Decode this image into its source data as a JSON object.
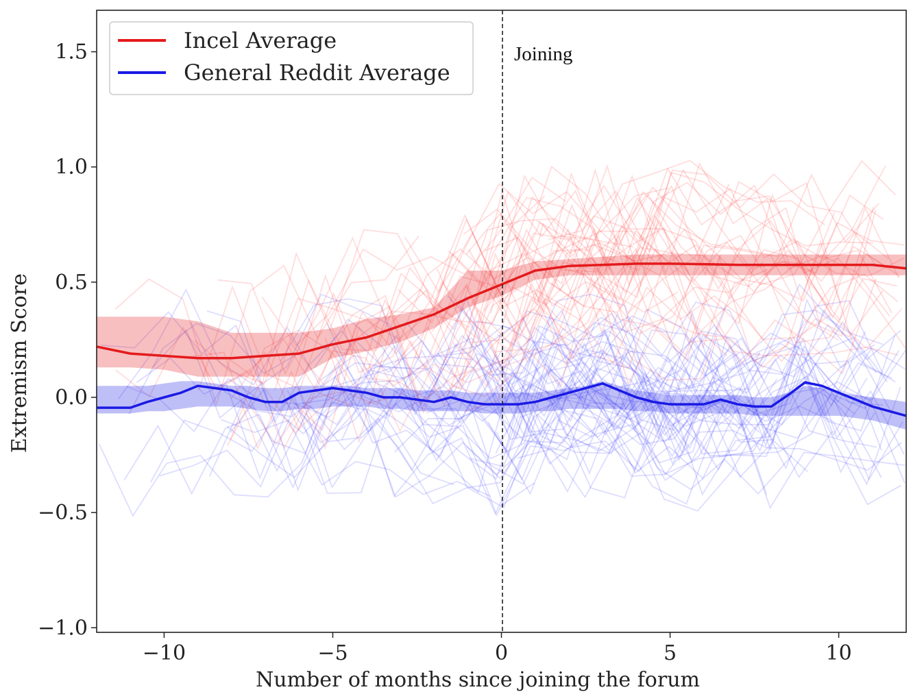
{
  "chart_data": {
    "type": "line",
    "title": "",
    "xlabel": "Number of months since joining the forum",
    "ylabel": "Extremism Score",
    "xlim": [
      -12,
      12
    ],
    "ylim": [
      -1.02,
      1.68
    ],
    "xticks": [
      -10,
      -5,
      0,
      5,
      10
    ],
    "yticks": [
      -1.0,
      -0.5,
      0.0,
      0.5,
      1.0,
      1.5
    ],
    "xtick_labels": [
      "−10",
      "−5",
      "0",
      "5",
      "10"
    ],
    "ytick_labels": [
      "−1.0",
      "−0.5",
      "0.0",
      "0.5",
      "1.0",
      "1.5"
    ],
    "grid": false,
    "legend_position": "top-left",
    "annotations": [
      {
        "text": "Joining",
        "x": 0,
        "style": "dashed vertical line"
      }
    ],
    "series": [
      {
        "name": "Incel Average",
        "color": "#e41a1c",
        "x": [
          -12,
          -11,
          -10,
          -9,
          -8,
          -7,
          -6,
          -5,
          -4,
          -3,
          -2,
          -1,
          0,
          1,
          2,
          3,
          4,
          5,
          6,
          7,
          8,
          9,
          10,
          11,
          12
        ],
        "values": [
          0.22,
          0.19,
          0.18,
          0.17,
          0.17,
          0.18,
          0.19,
          0.23,
          0.26,
          0.31,
          0.36,
          0.43,
          0.49,
          0.55,
          0.57,
          0.575,
          0.58,
          0.58,
          0.578,
          0.575,
          0.575,
          0.575,
          0.575,
          0.575,
          0.56
        ],
        "band_lower": [
          0.13,
          0.13,
          0.12,
          0.09,
          0.09,
          0.09,
          0.09,
          0.17,
          0.2,
          0.24,
          0.3,
          0.39,
          0.44,
          0.51,
          0.53,
          0.53,
          0.53,
          0.53,
          0.53,
          0.53,
          0.53,
          0.53,
          0.53,
          0.53,
          0.53
        ],
        "band_upper": [
          0.35,
          0.35,
          0.35,
          0.33,
          0.28,
          0.28,
          0.28,
          0.3,
          0.34,
          0.36,
          0.39,
          0.55,
          0.55,
          0.59,
          0.6,
          0.61,
          0.62,
          0.62,
          0.62,
          0.62,
          0.62,
          0.62,
          0.62,
          0.62,
          0.62
        ]
      },
      {
        "name": "General Reddit Average",
        "color": "#1a1ae4",
        "x": [
          -12,
          -11,
          -10.5,
          -10,
          -9.5,
          -9,
          -8.5,
          -8,
          -7.5,
          -7,
          -6.5,
          -6,
          -5.5,
          -5,
          -4.5,
          -4,
          -3.5,
          -3,
          -2.5,
          -2,
          -1.5,
          -1,
          -0.5,
          0,
          0.5,
          1,
          1.5,
          2,
          2.5,
          3,
          3.5,
          4,
          4.5,
          5,
          5.5,
          6,
          6.5,
          7,
          7.5,
          8,
          8.5,
          9,
          9.5,
          10,
          10.5,
          11,
          11.5,
          12
        ],
        "values": [
          -0.045,
          -0.045,
          -0.02,
          0.0,
          0.02,
          0.05,
          0.04,
          0.03,
          0.0,
          -0.02,
          -0.02,
          0.02,
          0.03,
          0.04,
          0.03,
          0.02,
          0.0,
          0.0,
          -0.01,
          -0.02,
          0.0,
          -0.02,
          -0.03,
          -0.03,
          -0.03,
          -0.02,
          0.0,
          0.02,
          0.04,
          0.06,
          0.03,
          0.0,
          -0.02,
          -0.03,
          -0.03,
          -0.03,
          -0.01,
          -0.03,
          -0.04,
          -0.04,
          0.01,
          0.065,
          0.05,
          0.02,
          -0.01,
          -0.04,
          -0.06,
          -0.08
        ],
        "band_lower": [
          -0.07,
          -0.07,
          -0.06,
          -0.06,
          -0.05,
          -0.04,
          -0.04,
          -0.04,
          -0.05,
          -0.06,
          -0.06,
          -0.05,
          -0.05,
          -0.04,
          -0.04,
          -0.04,
          -0.05,
          -0.05,
          -0.06,
          -0.06,
          -0.06,
          -0.06,
          -0.07,
          -0.07,
          -0.07,
          -0.06,
          -0.06,
          -0.05,
          -0.05,
          -0.05,
          -0.05,
          -0.06,
          -0.06,
          -0.07,
          -0.07,
          -0.07,
          -0.07,
          -0.07,
          -0.08,
          -0.08,
          -0.08,
          -0.08,
          -0.08,
          -0.08,
          -0.09,
          -0.1,
          -0.12,
          -0.14
        ],
        "band_upper": [
          0.05,
          0.05,
          0.05,
          0.06,
          0.07,
          0.07,
          0.06,
          0.05,
          0.05,
          0.04,
          0.04,
          0.05,
          0.05,
          0.05,
          0.05,
          0.04,
          0.04,
          0.04,
          0.03,
          0.03,
          0.03,
          0.02,
          0.02,
          0.02,
          0.02,
          0.02,
          0.03,
          0.04,
          0.05,
          0.07,
          0.05,
          0.03,
          0.02,
          0.01,
          0.01,
          0.01,
          0.01,
          0.01,
          0.0,
          0.0,
          0.02,
          0.05,
          0.04,
          0.02,
          0.01,
          0.0,
          -0.01,
          -0.02
        ]
      }
    ],
    "individual_traces": {
      "incel_count": 45,
      "reddit_count": 60,
      "incel_color": "#ff4444",
      "reddit_color": "#4444ff",
      "opacity": 0.18
    }
  },
  "legend": {
    "items": [
      {
        "label": "Incel Average",
        "color": "#e41a1c"
      },
      {
        "label": "General Reddit Average",
        "color": "#1a1ae4"
      }
    ]
  },
  "annotation": {
    "joining_label": "Joining"
  }
}
